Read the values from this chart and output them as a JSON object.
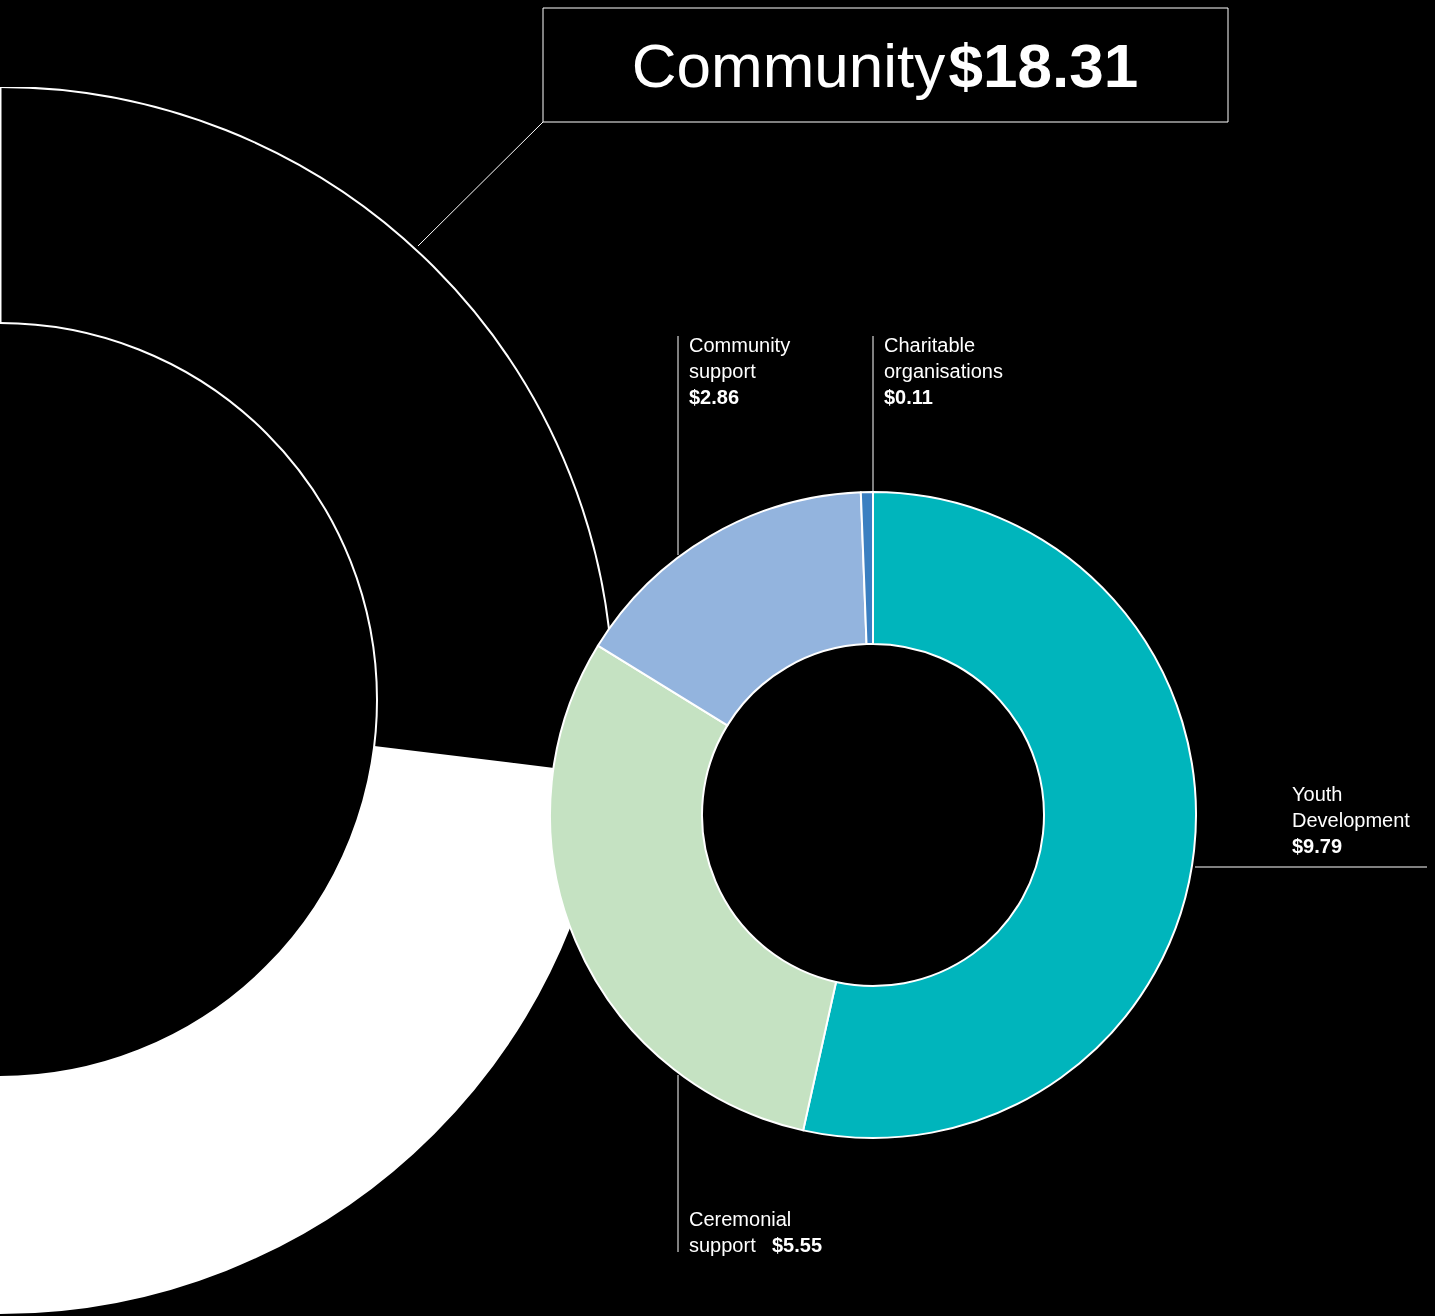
{
  "chart_data": {
    "type": "donut",
    "title": "Community",
    "subtitle": "$18.31",
    "categories": [
      "Youth Development",
      "Ceremonial support",
      "Community support",
      "Charitable organisations"
    ],
    "values": [
      9.79,
      5.55,
      2.86,
      0.11
    ],
    "colors": [
      "#00b5bc",
      "#c5e2c2",
      "#93b4de",
      "#3a7fc1"
    ],
    "value_labels": [
      "$9.79",
      "$5.55",
      "$2.86",
      "$0.11"
    ]
  }
}
